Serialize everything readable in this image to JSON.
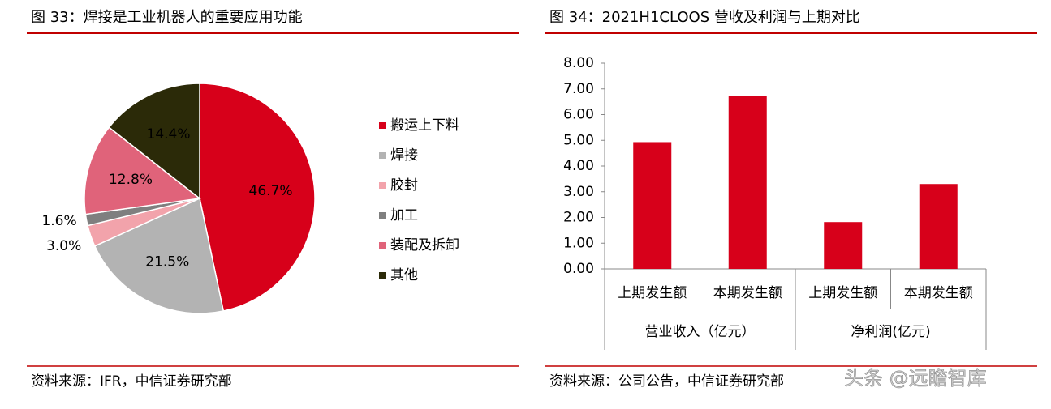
{
  "chart_data": [
    {
      "type": "pie",
      "title": "图 33：焊接是工业机器人的重要应用功能",
      "categories": [
        "搬运上下料",
        "焊接",
        "胶封",
        "加工",
        "装配及拆卸",
        "其他"
      ],
      "values": [
        46.7,
        21.5,
        3.0,
        1.6,
        12.8,
        14.4
      ],
      "value_labels": [
        "46.7%",
        "21.5%",
        "3.0%",
        "1.6%",
        "12.8%",
        "14.4%"
      ],
      "colors": [
        "#d7001a",
        "#b3b3b3",
        "#f2a3ab",
        "#7f7f7f",
        "#e0637a",
        "#2b2a08"
      ],
      "source": "资料来源：IFR，中信证券研究部"
    },
    {
      "type": "bar",
      "title": "图 34：2021H1CLOOS 营收及利润与上期对比",
      "categories": [
        "上期发生额",
        "本期发生额",
        "上期发生额",
        "本期发生额"
      ],
      "groups": [
        "营业收入（亿元）",
        "净利润(亿元)"
      ],
      "values": [
        4.93,
        6.73,
        1.82,
        3.3
      ],
      "color": "#d7001a",
      "ylim": [
        0,
        8
      ],
      "yticks": [
        {
          "value": 0,
          "label": "0.00"
        },
        {
          "value": 1,
          "label": "1.00"
        },
        {
          "value": 2,
          "label": "2.00"
        },
        {
          "value": 3,
          "label": "3.00"
        },
        {
          "value": 4,
          "label": "4.00"
        },
        {
          "value": 5,
          "label": "5.00"
        },
        {
          "value": 6,
          "label": "6.00"
        },
        {
          "value": 7,
          "label": "7.00"
        },
        {
          "value": 8,
          "label": "8.00"
        }
      ],
      "grid": false,
      "source": "资料来源：公司公告，中信证券研究部"
    }
  ],
  "watermark": "头条 @远瞻智库"
}
